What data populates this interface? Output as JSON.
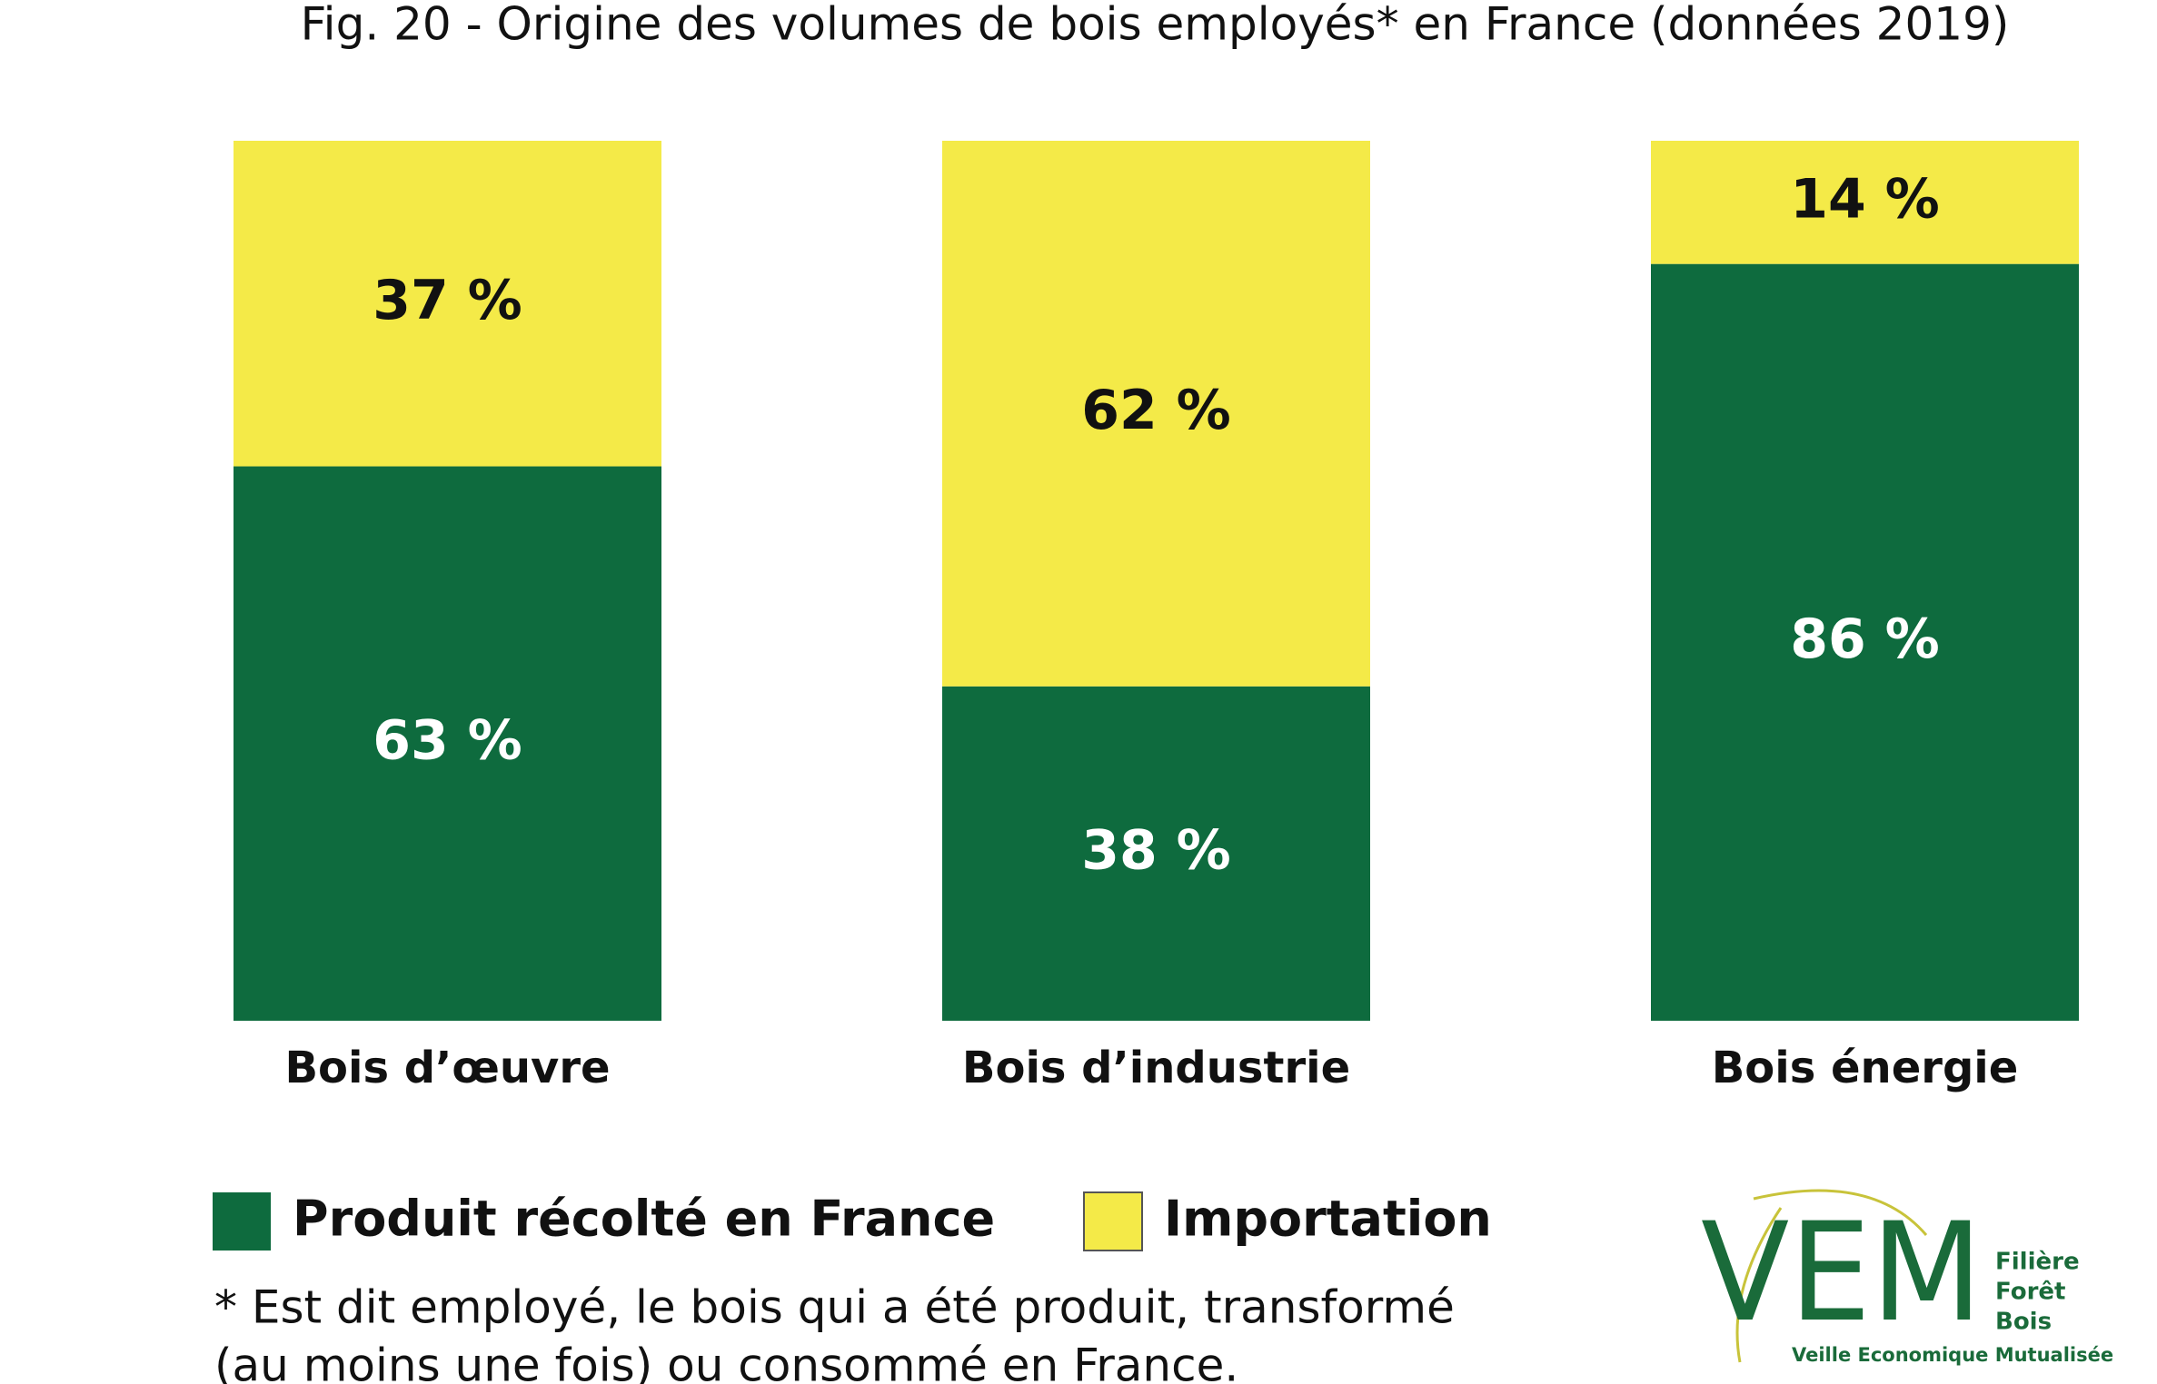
{
  "chart_data": {
    "type": "bar",
    "stacked": true,
    "title": "Fig. 20 - Origine des volumes de bois employés* en France (données 2019)",
    "categories": [
      "Bois d’œuvre",
      "Bois d’industrie",
      "Bois énergie"
    ],
    "series": [
      {
        "name": "Produit récolté en France",
        "color": "#0e6b3e",
        "values": [
          63,
          38,
          86
        ],
        "value_labels": [
          "63 %",
          "38 %",
          "86 %"
        ],
        "label_color": "#ffffff"
      },
      {
        "name": "Importation",
        "color": "#f4ea48",
        "values": [
          37,
          62,
          14
        ],
        "value_labels": [
          "37 %",
          "62 %",
          "14 %"
        ],
        "label_color": "#111111"
      }
    ],
    "ylim": [
      0,
      100
    ],
    "legend": "bottom",
    "footnote": [
      "* Est dit employé, le bois qui a été produit, transformé",
      "(au moins une fois) ou consommé en France."
    ],
    "logo": {
      "mark": "VEM",
      "lines": [
        "Filière",
        "Forêt",
        "Bois"
      ],
      "tagline": "Veille Economique Mutualisée"
    }
  }
}
